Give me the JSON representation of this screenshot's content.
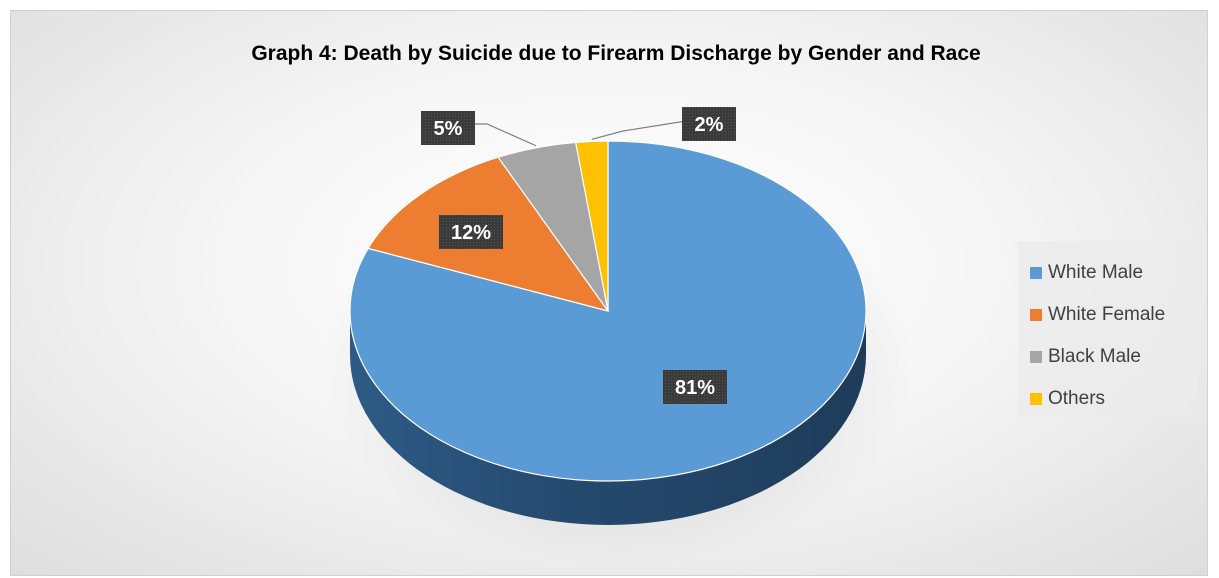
{
  "chart_data": {
    "type": "pie",
    "title": "Graph 4: Death by Suicide due to Firearm Discharge by Gender and Race",
    "categories": [
      "White Male",
      "White Female",
      "Black Male",
      "Others"
    ],
    "values": [
      81,
      12,
      5,
      2
    ],
    "data_labels": [
      "81%",
      "12%",
      "5%",
      "2%"
    ],
    "unit": "%",
    "colors": [
      "#5B9BD5",
      "#ED7D31",
      "#A5A5A5",
      "#FFC000"
    ],
    "legend_position": "right",
    "style": "3d-pie",
    "grid": false
  }
}
